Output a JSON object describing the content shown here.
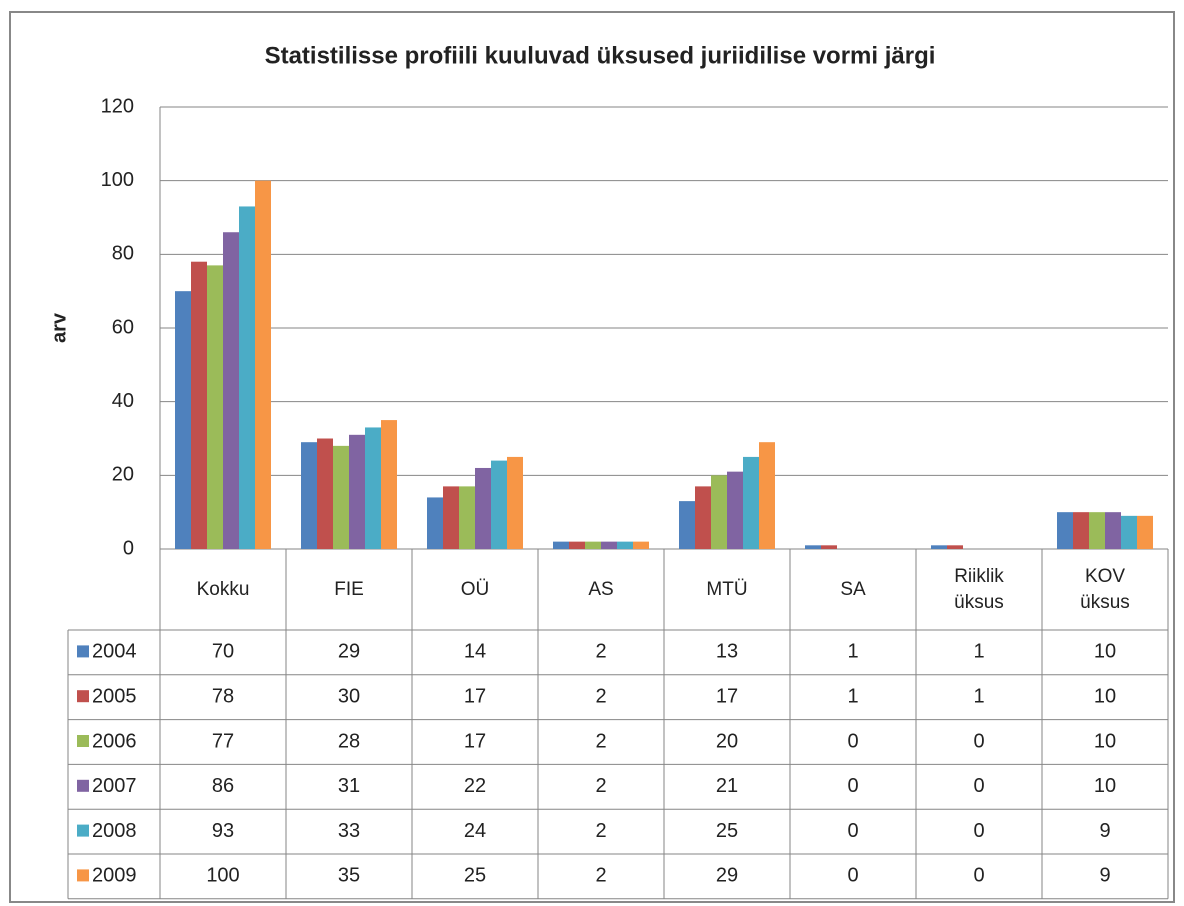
{
  "chart_data": {
    "type": "bar",
    "title": "Statistilisse profiili kuuluvad üksused juriidilise vormi järgi",
    "y_label": "arv",
    "categories": [
      "Kokku",
      "FIE",
      "OÜ",
      "AS",
      "MTÜ",
      "SA",
      "Riiklik üksus",
      "KOV üksus"
    ],
    "series": [
      {
        "name": "2004",
        "color": "#4f81bd",
        "values": [
          70,
          29,
          14,
          2,
          13,
          1,
          1,
          10
        ]
      },
      {
        "name": "2005",
        "color": "#c0504d",
        "values": [
          78,
          30,
          17,
          2,
          17,
          1,
          1,
          10
        ]
      },
      {
        "name": "2006",
        "color": "#9bbb59",
        "values": [
          77,
          28,
          17,
          2,
          20,
          0,
          0,
          10
        ]
      },
      {
        "name": "2007",
        "color": "#8064a2",
        "values": [
          86,
          31,
          22,
          2,
          21,
          0,
          0,
          10
        ]
      },
      {
        "name": "2008",
        "color": "#4bacc6",
        "values": [
          93,
          33,
          24,
          2,
          25,
          0,
          0,
          9
        ]
      },
      {
        "name": "2009",
        "color": "#f79646",
        "values": [
          100,
          35,
          25,
          2,
          29,
          0,
          0,
          9
        ]
      }
    ],
    "ylim": [
      0,
      120
    ],
    "yticks": [
      0,
      20,
      40,
      60,
      80,
      100,
      120
    ],
    "grid": true
  }
}
